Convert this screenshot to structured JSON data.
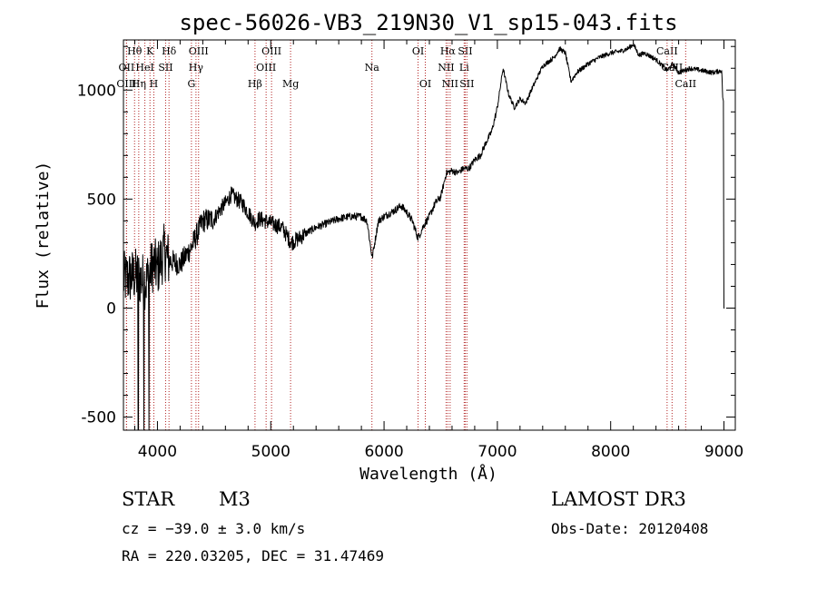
{
  "chart_data": {
    "type": "line",
    "title": "spec-56026-VB3_219N30_V1_sp15-043.fits",
    "xlabel": "Wavelength (Å)",
    "ylabel": "Flux (relative)",
    "xlim": [
      3700,
      9100
    ],
    "ylim": [
      -560,
      1230
    ],
    "xticks": [
      4000,
      5000,
      6000,
      7000,
      8000,
      9000
    ],
    "yticks": [
      -500,
      0,
      500,
      1000
    ],
    "grid": false,
    "series": [
      {
        "name": "spectrum",
        "anchors": [
          [
            3700,
            130
          ],
          [
            3800,
            150
          ],
          [
            3900,
            120
          ],
          [
            3960,
            200
          ],
          [
            4000,
            180
          ],
          [
            4060,
            260
          ],
          [
            4100,
            220
          ],
          [
            4200,
            200
          ],
          [
            4300,
            280
          ],
          [
            4400,
            400
          ],
          [
            4500,
            410
          ],
          [
            4550,
            450
          ],
          [
            4600,
            480
          ],
          [
            4650,
            520
          ],
          [
            4700,
            500
          ],
          [
            4750,
            480
          ],
          [
            4800,
            440
          ],
          [
            4860,
            390
          ],
          [
            4900,
            410
          ],
          [
            5000,
            390
          ],
          [
            5100,
            370
          ],
          [
            5180,
            300
          ],
          [
            5250,
            320
          ],
          [
            5300,
            340
          ],
          [
            5400,
            370
          ],
          [
            5500,
            390
          ],
          [
            5600,
            410
          ],
          [
            5700,
            420
          ],
          [
            5800,
            420
          ],
          [
            5850,
            400
          ],
          [
            5895,
            230
          ],
          [
            5950,
            400
          ],
          [
            6000,
            420
          ],
          [
            6100,
            450
          ],
          [
            6150,
            470
          ],
          [
            6200,
            440
          ],
          [
            6250,
            400
          ],
          [
            6300,
            320
          ],
          [
            6350,
            380
          ],
          [
            6400,
            420
          ],
          [
            6450,
            480
          ],
          [
            6500,
            510
          ],
          [
            6550,
            620
          ],
          [
            6600,
            630
          ],
          [
            6650,
            620
          ],
          [
            6700,
            640
          ],
          [
            6750,
            640
          ],
          [
            6800,
            680
          ],
          [
            6850,
            700
          ],
          [
            6900,
            760
          ],
          [
            6950,
            810
          ],
          [
            7000,
            920
          ],
          [
            7050,
            1100
          ],
          [
            7100,
            980
          ],
          [
            7150,
            920
          ],
          [
            7200,
            960
          ],
          [
            7250,
            940
          ],
          [
            7300,
            1000
          ],
          [
            7400,
            1110
          ],
          [
            7500,
            1150
          ],
          [
            7550,
            1190
          ],
          [
            7600,
            1170
          ],
          [
            7650,
            1040
          ],
          [
            7700,
            1080
          ],
          [
            7800,
            1120
          ],
          [
            7900,
            1150
          ],
          [
            8000,
            1170
          ],
          [
            8100,
            1180
          ],
          [
            8150,
            1190
          ],
          [
            8200,
            1210
          ],
          [
            8250,
            1160
          ],
          [
            8300,
            1170
          ],
          [
            8400,
            1140
          ],
          [
            8500,
            1090
          ],
          [
            8550,
            1120
          ],
          [
            8600,
            1080
          ],
          [
            8700,
            1100
          ],
          [
            8800,
            1090
          ],
          [
            8900,
            1080
          ],
          [
            8980,
            1090
          ],
          [
            8990,
            950
          ],
          [
            9000,
            0
          ]
        ]
      }
    ],
    "line_markers": [
      {
        "label": "Hθ",
        "wave": 3798,
        "row": 1
      },
      {
        "label": "K",
        "wave": 3934,
        "row": 1
      },
      {
        "label": "Hδ",
        "wave": 4102,
        "row": 1
      },
      {
        "label": "OIII",
        "wave": 4363,
        "row": 1
      },
      {
        "label": "OIII",
        "wave": 5007,
        "row": 1
      },
      {
        "label": "OI",
        "wave": 6300,
        "row": 1
      },
      {
        "label": "Hα",
        "wave": 6563,
        "row": 1
      },
      {
        "label": "SII",
        "wave": 6716,
        "row": 1
      },
      {
        "label": "CaII",
        "wave": 8498,
        "row": 1
      },
      {
        "label": "OII",
        "wave": 3727,
        "row": 2
      },
      {
        "label": "HeI",
        "wave": 3889,
        "row": 2
      },
      {
        "label": "SII",
        "wave": 4072,
        "row": 2
      },
      {
        "label": "Hγ",
        "wave": 4340,
        "row": 2
      },
      {
        "label": "OIII",
        "wave": 4959,
        "row": 2
      },
      {
        "label": "Na",
        "wave": 5893,
        "row": 2
      },
      {
        "label": "NII",
        "wave": 6548,
        "row": 2
      },
      {
        "label": "Li",
        "wave": 6707,
        "row": 2
      },
      {
        "label": "CaII",
        "wave": 8542,
        "row": 2
      },
      {
        "label": "OIII",
        "wave": 3727,
        "row": 3
      },
      {
        "label": "Hη",
        "wave": 3835,
        "row": 3
      },
      {
        "label": "H",
        "wave": 3968,
        "row": 3
      },
      {
        "label": "G",
        "wave": 4300,
        "row": 3
      },
      {
        "label": "Hβ",
        "wave": 4861,
        "row": 3
      },
      {
        "label": "Mg",
        "wave": 5175,
        "row": 3
      },
      {
        "label": "OI",
        "wave": 6364,
        "row": 3
      },
      {
        "label": "NII",
        "wave": 6583,
        "row": 3
      },
      {
        "label": "SII",
        "wave": 6731,
        "row": 3
      },
      {
        "label": "CaII",
        "wave": 8662,
        "row": 3
      }
    ]
  },
  "footer": {
    "class_label": "STAR",
    "subclass": "M3",
    "survey": "LAMOST DR3",
    "cz_text": "cz = −39.0 ± 3.0 km/s",
    "obs_date": "Obs-Date: 20120408",
    "coords_text": "RA = 220.03205, DEC =  31.47469"
  },
  "colors": {
    "axis": "#000000",
    "line_marker": "#b22222",
    "spectrum": "#000000"
  }
}
